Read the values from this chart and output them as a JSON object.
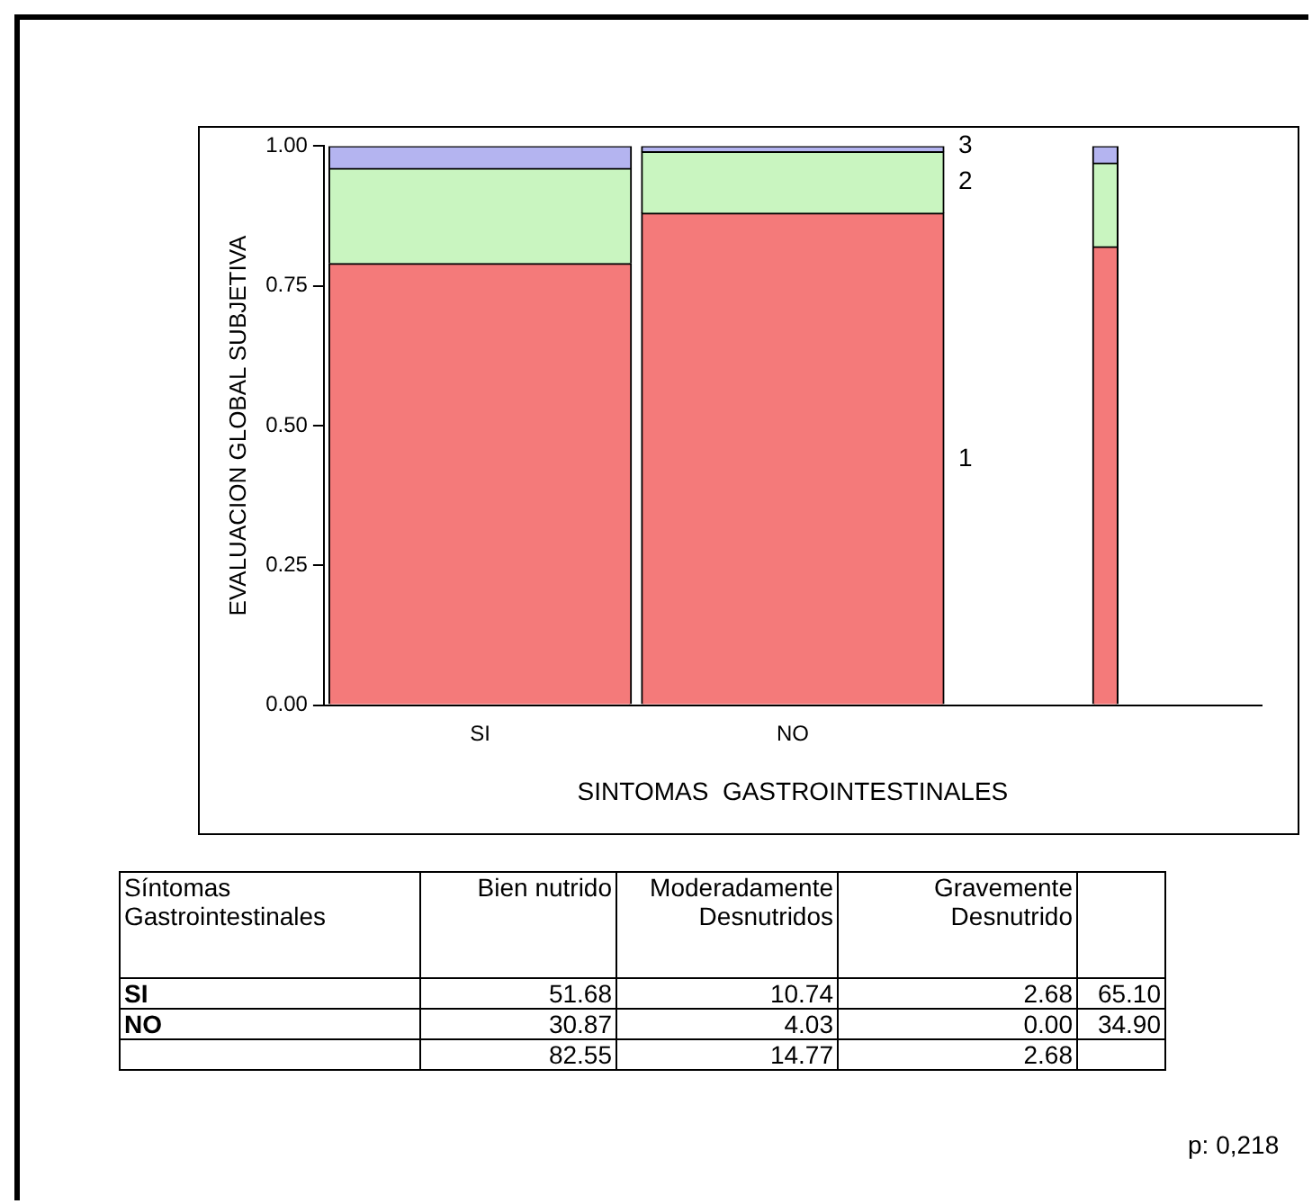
{
  "chart_data": [
    {
      "type": "bar",
      "stacked": true,
      "categories": [
        "SI",
        "NO",
        null
      ],
      "xlabel": "SINTOMAS  GASTROINTESTINALES",
      "ylabel": "EVALUACION GLOBAL SUBJETIVA",
      "ylim": [
        0,
        1
      ],
      "yticks": [
        {
          "value": 0,
          "label": "0.00"
        },
        {
          "value": 0.25,
          "label": "0.25"
        },
        {
          "value": 0.5,
          "label": "0.50"
        },
        {
          "value": 0.75,
          "label": "0.75"
        },
        {
          "value": 1,
          "label": "1.00"
        }
      ],
      "grid": false,
      "legend": false,
      "series": [
        {
          "name": "1",
          "color": "#f47a7a",
          "values": [
            0.79,
            0.88,
            0.82
          ]
        },
        {
          "name": "2",
          "color": "#c9f5c0",
          "values": [
            0.17,
            0.11,
            0.15
          ]
        },
        {
          "name": "3",
          "color": "#b4b4f0",
          "values": [
            0.04,
            0.01,
            0.03
          ]
        }
      ]
    },
    {
      "type": "other",
      "ylabel": "Síntomas Gastrointestinales",
      "categories": [
        "Bien nutrido",
        "Moderadamente Desnutridos",
        "Gravemente Desnutrido",
        null
      ],
      "y_categories": [
        "SI",
        "NO",
        null
      ],
      "cell_labels": [
        [
          "51.68",
          "10.74",
          "2.68",
          "65.10"
        ],
        [
          "30.87",
          "4.03",
          "0.00",
          "34.90"
        ],
        [
          "82.55",
          "14.77",
          "2.68",
          null
        ]
      ],
      "annotations": [
        "p: 0,218"
      ]
    }
  ]
}
